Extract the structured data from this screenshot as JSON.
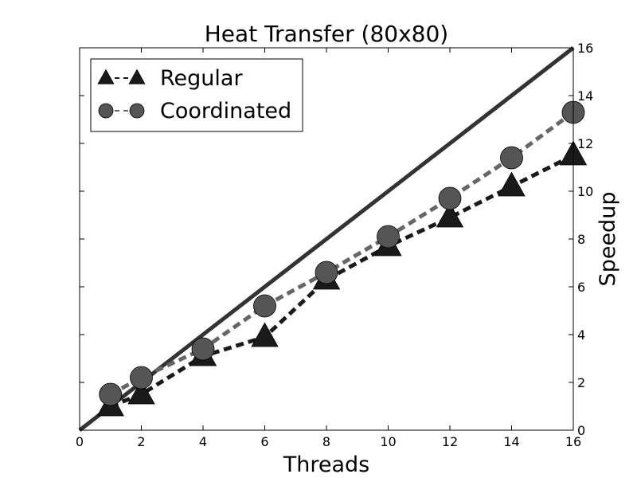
{
  "chart_data": {
    "type": "line",
    "title": "Heat Transfer (80x80)",
    "xlabel": "Threads",
    "ylabel": "Speedup",
    "xlim": [
      0,
      16
    ],
    "ylim": [
      0,
      16
    ],
    "x_ticks": [
      0,
      2,
      4,
      6,
      8,
      10,
      12,
      14,
      16
    ],
    "y_ticks": [
      0,
      2,
      4,
      6,
      8,
      10,
      12,
      14,
      16
    ],
    "y_axis_side": "right",
    "legend_position": "top-left",
    "grid": false,
    "ideal_line": {
      "x": [
        0,
        16
      ],
      "y": [
        0,
        16
      ],
      "color": "#333333"
    },
    "series": [
      {
        "name": "Regular",
        "marker": "triangle",
        "line_color": "#1a1a1a",
        "marker_color": "#1a1a1a",
        "x": [
          1,
          2,
          4,
          6,
          8,
          10,
          12,
          14,
          16
        ],
        "y": [
          1.0,
          1.5,
          3.1,
          3.9,
          6.3,
          7.7,
          8.9,
          10.2,
          11.5
        ]
      },
      {
        "name": "Coordinated",
        "marker": "circle",
        "line_color": "#666666",
        "marker_color": "#555555",
        "x": [
          1,
          2,
          4,
          6,
          8,
          10,
          12,
          14,
          16
        ],
        "y": [
          1.5,
          2.2,
          3.4,
          5.2,
          6.6,
          8.1,
          9.7,
          11.4,
          13.3
        ]
      }
    ]
  }
}
